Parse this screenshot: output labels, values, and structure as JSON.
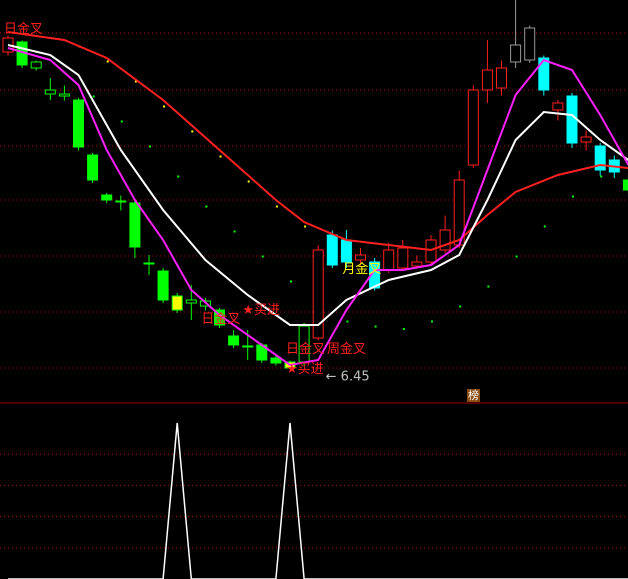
{
  "chart_data": {
    "type": "candlestick",
    "main_pane": {
      "ylim": [
        5.75,
        13.81
      ],
      "gridlines": [
        13.15,
        12.01,
        10.89,
        9.81,
        8.69,
        7.57,
        6.45
      ],
      "up_color": "#ff2020",
      "down_color": "#00ff00",
      "candles": [
        {
          "o": 12.77,
          "c": 13.05,
          "h": 13.1,
          "l": 12.7,
          "color": "#ff2020"
        },
        {
          "o": 12.97,
          "c": 12.51,
          "h": 13.0,
          "l": 12.45,
          "color": "#00ff00",
          "fill": true
        },
        {
          "o": 12.57,
          "c": 12.45,
          "h": 12.6,
          "l": 12.4,
          "color": "#00ff00"
        },
        {
          "o": 12.01,
          "c": 11.93,
          "h": 12.25,
          "l": 11.81,
          "color": "#00ff00"
        },
        {
          "o": 11.93,
          "c": 11.89,
          "h": 12.1,
          "l": 11.8,
          "color": "#00ff00"
        },
        {
          "o": 11.81,
          "c": 10.87,
          "h": 11.85,
          "l": 10.8,
          "color": "#00ff00",
          "fill": true
        },
        {
          "o": 10.71,
          "c": 10.21,
          "h": 10.75,
          "l": 10.15,
          "color": "#00ff00",
          "fill": true
        },
        {
          "o": 9.91,
          "c": 9.81,
          "h": 9.95,
          "l": 9.75,
          "color": "#00ff00",
          "fill": true
        },
        {
          "o": 9.79,
          "c": 9.77,
          "h": 9.9,
          "l": 9.6,
          "color": "#00ff00"
        },
        {
          "o": 9.75,
          "c": 8.87,
          "h": 9.8,
          "l": 8.65,
          "color": "#00ff00",
          "fill": true
        },
        {
          "o": 8.55,
          "c": 8.53,
          "h": 8.71,
          "l": 8.31,
          "color": "#00ff00"
        },
        {
          "o": 8.39,
          "c": 7.81,
          "h": 8.45,
          "l": 7.75,
          "color": "#00ff00",
          "fill": true
        },
        {
          "o": 7.89,
          "c": 7.61,
          "h": 7.95,
          "l": 7.55,
          "color": "#ffff00",
          "fill": true,
          "border": "#00ff00"
        },
        {
          "o": 7.81,
          "c": 7.75,
          "h": 8.11,
          "l": 7.41,
          "color": "#00ff00"
        },
        {
          "o": 7.79,
          "c": 7.69,
          "h": 7.85,
          "l": 7.6,
          "color": "#00ff00"
        },
        {
          "o": 7.61,
          "c": 7.31,
          "h": 7.65,
          "l": 7.25,
          "color": "#00ff00",
          "fill": true
        },
        {
          "o": 7.09,
          "c": 6.91,
          "h": 7.21,
          "l": 6.85,
          "color": "#00ff00",
          "fill": true
        },
        {
          "o": 6.89,
          "c": 6.87,
          "h": 7.21,
          "l": 6.61,
          "color": "#00ff00"
        },
        {
          "o": 6.91,
          "c": 6.61,
          "h": 6.95,
          "l": 6.55,
          "color": "#00ff00",
          "fill": true
        },
        {
          "o": 6.65,
          "c": 6.55,
          "h": 6.7,
          "l": 6.5,
          "color": "#00ff00",
          "fill": true
        },
        {
          "o": 6.57,
          "c": 6.45,
          "h": 6.6,
          "l": 6.45,
          "color": "#ffff00",
          "fill": true,
          "border": "#00ff00"
        },
        {
          "o": 7.29,
          "c": 6.57,
          "h": 7.35,
          "l": 6.5,
          "color": "#00ff00"
        },
        {
          "o": 7.05,
          "c": 8.81,
          "h": 8.9,
          "l": 7.0,
          "color": "#ff2020"
        },
        {
          "o": 9.11,
          "c": 8.51,
          "h": 9.2,
          "l": 8.45,
          "color": "#00ffff",
          "fill": true
        },
        {
          "o": 9.01,
          "c": 8.57,
          "h": 9.21,
          "l": 8.45,
          "color": "#00ffff",
          "fill": true
        },
        {
          "o": 8.61,
          "c": 8.71,
          "h": 8.85,
          "l": 8.5,
          "color": "#ff2020"
        },
        {
          "o": 8.57,
          "c": 8.05,
          "h": 8.65,
          "l": 8.0,
          "color": "#00ffff",
          "fill": true
        },
        {
          "o": 8.41,
          "c": 8.81,
          "h": 8.95,
          "l": 8.35,
          "color": "#ff2020"
        },
        {
          "o": 8.45,
          "c": 8.85,
          "h": 9.01,
          "l": 8.4,
          "color": "#ff2020"
        },
        {
          "o": 8.49,
          "c": 8.57,
          "h": 8.7,
          "l": 8.45,
          "color": "#ff2020"
        },
        {
          "o": 8.57,
          "c": 9.01,
          "h": 9.11,
          "l": 8.5,
          "color": "#ff2020"
        },
        {
          "o": 8.81,
          "c": 9.21,
          "h": 9.5,
          "l": 8.75,
          "color": "#ff2020"
        },
        {
          "o": 8.91,
          "c": 10.21,
          "h": 10.4,
          "l": 8.85,
          "color": "#ff2020"
        },
        {
          "o": 10.51,
          "c": 12.01,
          "h": 12.1,
          "l": 10.45,
          "color": "#ff2020"
        },
        {
          "o": 12.01,
          "c": 12.41,
          "h": 13.01,
          "l": 11.75,
          "color": "#ff2020"
        },
        {
          "o": 12.05,
          "c": 12.45,
          "h": 12.6,
          "l": 11.9,
          "color": "#ff2020"
        },
        {
          "o": 12.57,
          "c": 12.91,
          "h": 13.81,
          "l": 12.45,
          "color": "#999999"
        },
        {
          "o": 12.61,
          "c": 13.25,
          "h": 13.3,
          "l": 12.55,
          "color": "#999999"
        },
        {
          "o": 12.65,
          "c": 12.01,
          "h": 12.7,
          "l": 11.9,
          "color": "#00ffff",
          "fill": true
        },
        {
          "o": 11.61,
          "c": 11.75,
          "h": 11.81,
          "l": 11.4,
          "color": "#ff2020"
        },
        {
          "o": 11.89,
          "c": 10.95,
          "h": 11.95,
          "l": 10.85,
          "color": "#00ffff",
          "fill": true
        },
        {
          "o": 10.97,
          "c": 11.07,
          "h": 11.2,
          "l": 10.8,
          "color": "#ff2020"
        },
        {
          "o": 10.89,
          "c": 10.41,
          "h": 10.95,
          "l": 10.3,
          "color": "#00ffff",
          "fill": true
        },
        {
          "o": 10.61,
          "c": 10.37,
          "h": 10.7,
          "l": 10.25,
          "color": "#00ffff",
          "fill": true
        },
        {
          "o": 10.21,
          "c": 10.01,
          "h": 10.3,
          "l": 9.95,
          "color": "#00ff00",
          "fill": true
        }
      ],
      "lines": [
        {
          "color": "#ff2020",
          "points": [
            [
              0,
              13.17
            ],
            [
              4,
              13.01
            ],
            [
              7,
              12.65
            ],
            [
              11,
              11.81
            ],
            [
              15,
              10.81
            ],
            [
              19,
              9.81
            ],
            [
              21,
              9.37
            ],
            [
              24,
              9.01
            ],
            [
              27,
              8.91
            ],
            [
              30,
              8.81
            ],
            [
              32,
              9.01
            ],
            [
              34,
              9.51
            ],
            [
              36,
              9.97
            ],
            [
              39,
              10.31
            ],
            [
              42,
              10.51
            ],
            [
              44,
              10.45
            ]
          ]
        },
        {
          "color": "#ffffff",
          "points": [
            [
              0,
              12.91
            ],
            [
              3,
              12.71
            ],
            [
              5,
              12.31
            ],
            [
              8,
              10.81
            ],
            [
              11,
              9.61
            ],
            [
              14,
              8.61
            ],
            [
              17,
              7.91
            ],
            [
              20,
              7.31
            ],
            [
              22,
              7.31
            ],
            [
              24,
              7.81
            ],
            [
              27,
              8.21
            ],
            [
              30,
              8.41
            ],
            [
              32,
              8.71
            ],
            [
              34,
              9.81
            ],
            [
              36,
              11.01
            ],
            [
              38,
              11.57
            ],
            [
              40,
              11.51
            ],
            [
              42,
              11.01
            ],
            [
              44,
              10.61
            ]
          ]
        },
        {
          "color": "#ff20ff",
          "points": [
            [
              0,
              12.85
            ],
            [
              3,
              12.61
            ],
            [
              5,
              12.11
            ],
            [
              7,
              10.81
            ],
            [
              9,
              9.81
            ],
            [
              11,
              9.01
            ],
            [
              13,
              8.01
            ],
            [
              15,
              7.51
            ],
            [
              18,
              6.91
            ],
            [
              20,
              6.51
            ],
            [
              22,
              6.61
            ],
            [
              24,
              7.61
            ],
            [
              26,
              8.41
            ],
            [
              28,
              8.41
            ],
            [
              30,
              8.51
            ],
            [
              32,
              8.91
            ],
            [
              34,
              10.41
            ],
            [
              36,
              11.91
            ],
            [
              38,
              12.61
            ],
            [
              40,
              12.41
            ],
            [
              42,
              11.51
            ],
            [
              44,
              10.51
            ]
          ]
        }
      ],
      "dots": [
        {
          "color": "#ffff00",
          "points": [
            [
              5,
              12.9
            ],
            [
              7,
              12.6
            ],
            [
              9,
              12.2
            ],
            [
              11,
              11.7
            ],
            [
              13,
              11.2
            ],
            [
              15,
              10.7
            ],
            [
              17,
              10.2
            ],
            [
              19,
              9.7
            ],
            [
              21,
              9.3
            ]
          ]
        },
        {
          "color": "#00ff00",
          "points": [
            [
              6,
              11.9
            ],
            [
              8,
              11.4
            ],
            [
              10,
              10.9
            ],
            [
              12,
              10.3
            ],
            [
              14,
              9.7
            ],
            [
              16,
              9.2
            ],
            [
              18,
              8.7
            ],
            [
              20,
              8.2
            ],
            [
              22,
              7.7
            ],
            [
              24,
              7.4
            ],
            [
              26,
              7.3
            ],
            [
              28,
              7.25
            ],
            [
              30,
              7.4
            ],
            [
              32,
              7.7
            ],
            [
              34,
              8.1
            ],
            [
              36,
              8.7
            ],
            [
              38,
              9.3
            ],
            [
              40,
              9.9
            ],
            [
              42,
              10.3
            ],
            [
              44,
              10.4
            ]
          ]
        }
      ],
      "annotations": [
        {
          "i": 0,
          "price": 13.25,
          "text": "日金叉",
          "color": "#ff2020"
        },
        {
          "i": 14,
          "price": 7.45,
          "text": "日金叉",
          "color": "#ff2020"
        },
        {
          "i": 12,
          "price": 7.63,
          "text": "★买进",
          "color": "#ff2020"
        },
        {
          "i": 20,
          "price": 6.85,
          "text": "日金叉",
          "color": "#ff2020"
        },
        {
          "i": 22,
          "price": 6.85,
          "text": "周金叉",
          "color": "#ff2020"
        },
        {
          "i": 20,
          "price": 6.45,
          "text": "★买进",
          "color": "#ff2020"
        },
        {
          "i": 21,
          "price": 6.3,
          "text": "← 6.45",
          "color": "#c0c0c0"
        },
        {
          "i": 24,
          "price": 8.45,
          "text": "月金叉",
          "color": "#ffff00"
        }
      ]
    },
    "sub_pane": {
      "type": "line",
      "ylim": [
        0,
        1
      ],
      "gridlines": [
        0.8,
        0.6,
        0.4,
        0.2
      ],
      "color": "#ffffff",
      "spikes_at": [
        12,
        20
      ],
      "badge": "榜"
    }
  }
}
